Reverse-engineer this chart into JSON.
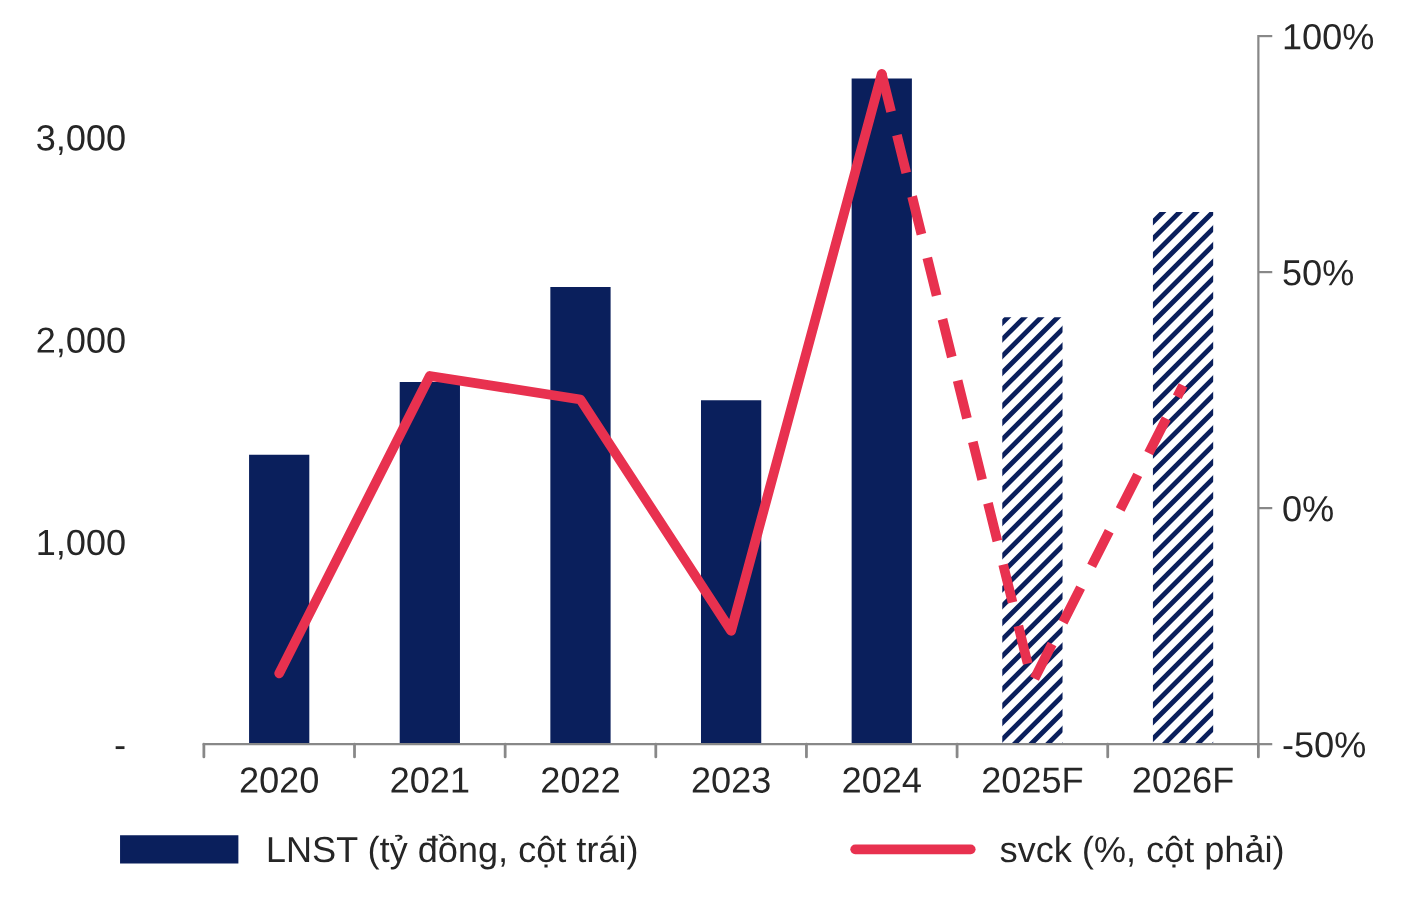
{
  "chart_data": {
    "type": "bar",
    "categories": [
      "2020",
      "2021",
      "2022",
      "2023",
      "2024",
      "2025F",
      "2026F"
    ],
    "series": [
      {
        "name": "LNST (tỷ đồng, cột trái)",
        "color": "#0a1f5c",
        "values": [
          1430,
          1790,
          2260,
          1700,
          3290,
          null,
          null
        ]
      },
      {
        "color": "#0a1f5c",
        "values": [
          null,
          null,
          null,
          null,
          null,
          2110,
          2630
        ]
      },
      {
        "name": "svck (%, cột phải)",
        "type": "line",
        "axis": "y2",
        "color": "#e8314f",
        "line_style": "solid",
        "values": [
          -35,
          28,
          23,
          -26,
          92,
          null,
          null
        ]
      },
      {
        "type": "line",
        "axis": "y2",
        "color": "#e8314f",
        "line_style": "dashed",
        "values": [
          null,
          null,
          null,
          null,
          92,
          -37,
          26
        ]
      }
    ],
    "ylim": [
      0,
      3500
    ],
    "yticks": [
      {
        "value": 0,
        "label": "-"
      },
      {
        "value": 1000,
        "label": "1,000"
      },
      {
        "value": 2000,
        "label": "2,000"
      },
      {
        "value": 3000,
        "label": "3,000"
      }
    ],
    "y2lim": [
      -50,
      100
    ],
    "y2ticks": [
      {
        "value": -50,
        "label": "-50%"
      },
      {
        "value": 0,
        "label": "0%"
      },
      {
        "value": 50,
        "label": "50%"
      },
      {
        "value": 100,
        "label": "100%"
      }
    ],
    "legend": "bottom",
    "grid": false
  }
}
